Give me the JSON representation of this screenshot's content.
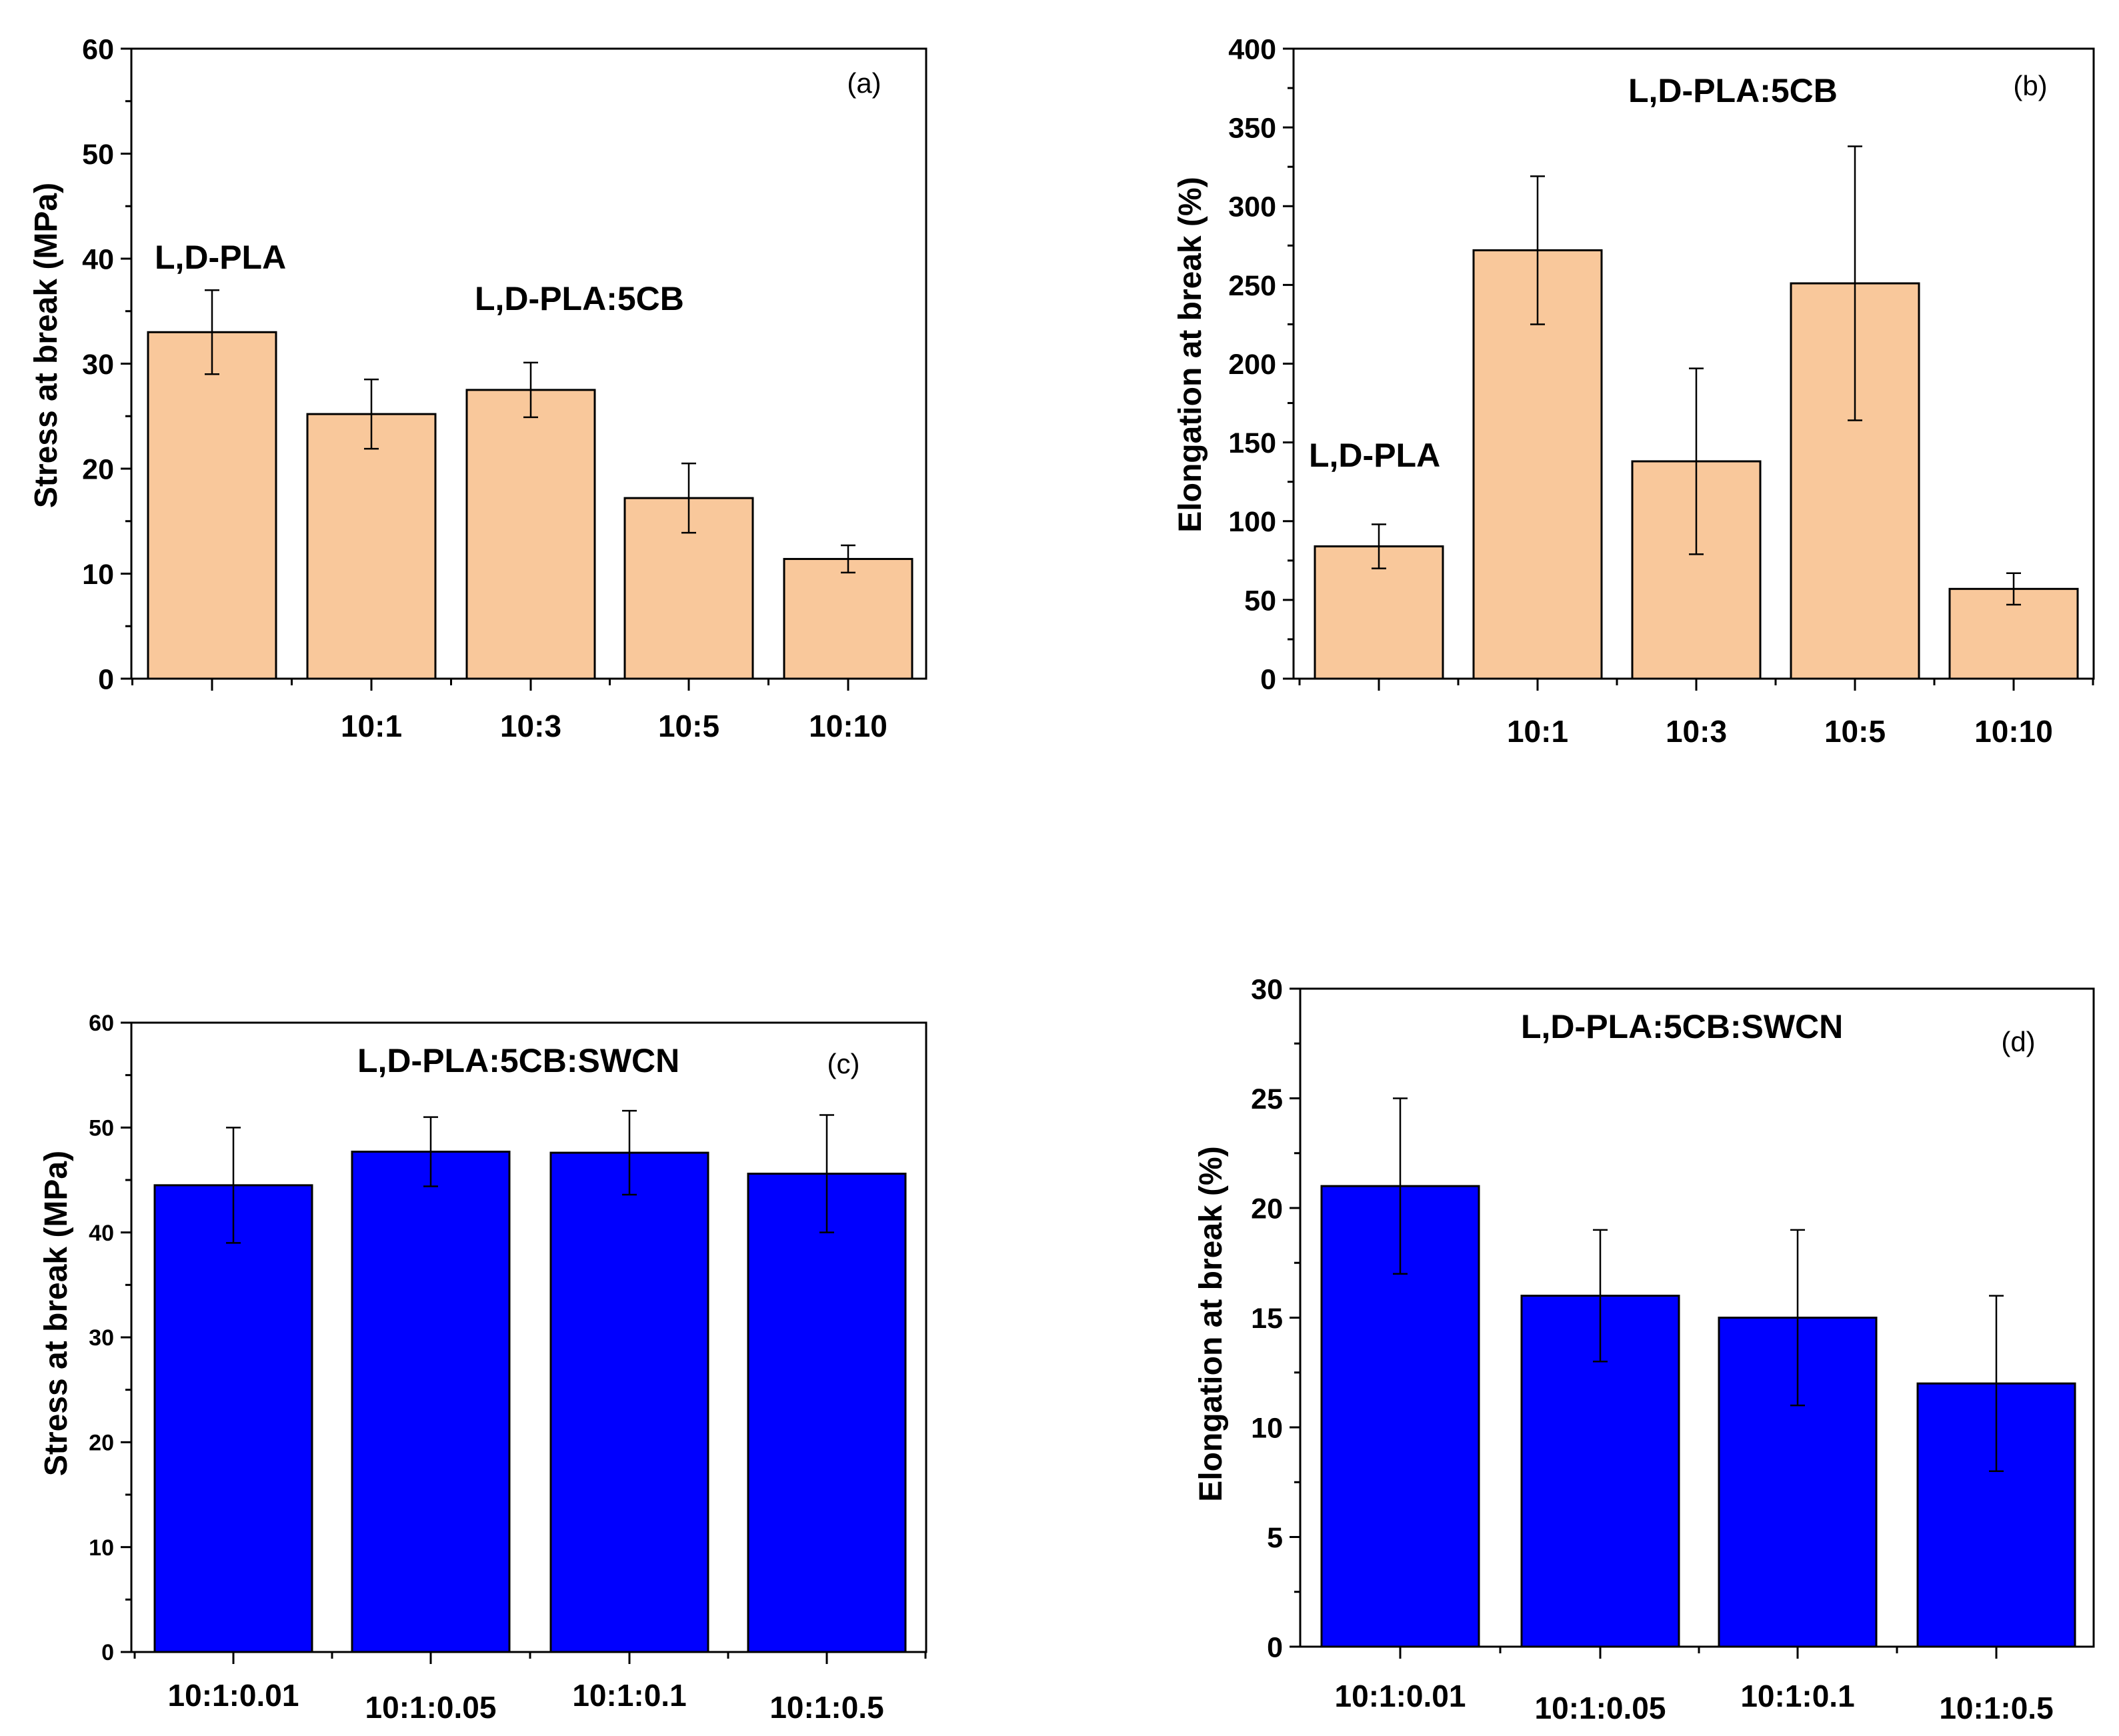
{
  "chart_data": [
    {
      "id": "a",
      "type": "bar",
      "panel_label": "(a)",
      "ylabel": "Stress at break (MPa)",
      "xlabel": "",
      "ylim": [
        0,
        60
      ],
      "yticks": [
        0,
        10,
        20,
        30,
        40,
        50,
        60
      ],
      "categories": [
        "",
        "10:1",
        "10:3",
        "10:5",
        "10:10"
      ],
      "values": [
        33,
        25.2,
        27.5,
        17.2,
        11.4
      ],
      "errors": [
        4,
        3.3,
        2.6,
        3.3,
        1.3
      ],
      "bar_color": "#f9c89b",
      "annotations": [
        "L,D-PLA",
        "L,D-PLA:5CB"
      ]
    },
    {
      "id": "b",
      "type": "bar",
      "panel_label": "(b)",
      "ylabel": "Elongation at break (%)",
      "xlabel": "",
      "ylim": [
        0,
        400
      ],
      "yticks": [
        0,
        50,
        100,
        150,
        200,
        250,
        300,
        350,
        400
      ],
      "categories": [
        "",
        "10:1",
        "10:3",
        "10:5",
        "10:10"
      ],
      "values": [
        84,
        272,
        138,
        251,
        57
      ],
      "errors": [
        14,
        47,
        59,
        87,
        10
      ],
      "bar_color": "#f9c89b",
      "annotations": [
        "L,D-PLA:5CB",
        "L,D-PLA"
      ]
    },
    {
      "id": "c",
      "type": "bar",
      "panel_label": "(c)",
      "ylabel": "Stress at break (MPa)",
      "xlabel": "",
      "ylim": [
        0,
        60
      ],
      "yticks": [
        0,
        10,
        20,
        30,
        40,
        50,
        60
      ],
      "categories": [
        "10:1:0.01",
        "10:1:0.05",
        "10:1:0.1",
        "10:1:0.5"
      ],
      "values": [
        44.5,
        47.7,
        47.6,
        45.6
      ],
      "errors": [
        5.5,
        3.3,
        4.0,
        5.6
      ],
      "bar_color": "#0000ff",
      "annotations": [
        "L,D-PLA:5CB:SWCN"
      ]
    },
    {
      "id": "d",
      "type": "bar",
      "panel_label": "(d)",
      "ylabel": "Elongation at break (%)",
      "xlabel": "",
      "ylim": [
        0,
        30
      ],
      "yticks": [
        0,
        5,
        10,
        15,
        20,
        25,
        30
      ],
      "categories": [
        "10:1:0.01",
        "10:1:0.05",
        "10:1:0.1",
        "10:1:0.5"
      ],
      "values": [
        21,
        16,
        15,
        12
      ],
      "errors": [
        4,
        3,
        4,
        4
      ],
      "bar_color": "#0000ff",
      "annotations": [
        "L,D-PLA:5CB:SWCN"
      ]
    }
  ]
}
